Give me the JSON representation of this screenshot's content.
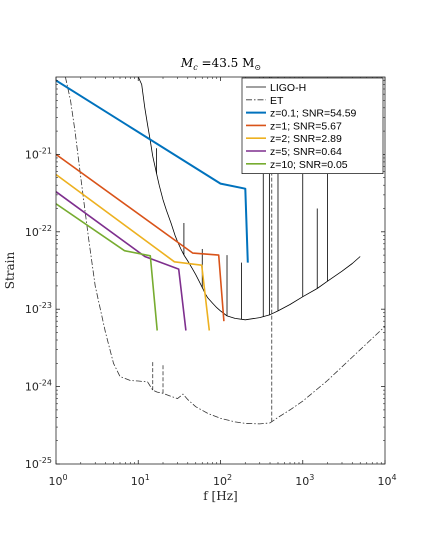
{
  "chart_data": {
    "type": "line",
    "title_parts": {
      "main": "M",
      "sub1": "c",
      "mid": " =43.5 M",
      "sub2": "⊙"
    },
    "xlabel": "f [Hz]",
    "ylabel": "Strain",
    "x_scale": "log",
    "y_scale": "log",
    "xlim": [
      1,
      10000
    ],
    "ylim": [
      1e-25,
      1e-20
    ],
    "x_ticks": [
      {
        "value": 1,
        "base": "10",
        "exp": "0"
      },
      {
        "value": 10,
        "base": "10",
        "exp": "1"
      },
      {
        "value": 100,
        "base": "10",
        "exp": "2"
      },
      {
        "value": 1000,
        "base": "10",
        "exp": "3"
      },
      {
        "value": 10000,
        "base": "10",
        "exp": "4"
      }
    ],
    "y_ticks": [
      {
        "value": 1e-25,
        "base": "10",
        "exp": "-25"
      },
      {
        "value": 1e-24,
        "base": "10",
        "exp": "-24"
      },
      {
        "value": 1e-23,
        "base": "10",
        "exp": "-23"
      },
      {
        "value": 1e-22,
        "base": "10",
        "exp": "-22"
      },
      {
        "value": 1e-21,
        "base": "10",
        "exp": "-21"
      }
    ],
    "grid": false,
    "legend_position": "top-right",
    "series": [
      {
        "name": "LIGO-H",
        "color": "#000000",
        "style": "solid",
        "width": 0.8,
        "x": [
          10,
          11,
          12,
          13,
          14,
          15,
          16,
          17,
          18,
          20,
          22,
          25,
          28,
          30,
          33,
          36,
          40,
          45,
          50,
          55,
          60,
          65,
          70,
          80,
          90,
          100,
          110,
          120,
          150,
          200,
          300,
          400,
          500,
          700,
          1000,
          1500,
          2000,
          3000,
          4000,
          5000
        ],
        "y": [
          1e-20,
          8e-21,
          4e-21,
          2.4e-21,
          1.5e-21,
          9.5e-22,
          7e-22,
          5.2e-22,
          4e-22,
          2.6e-22,
          1.9e-22,
          1.3e-22,
          9e-23,
          7.5e-23,
          6e-23,
          5e-23,
          4.2e-23,
          3.4e-23,
          2.8e-23,
          2.3e-23,
          1.9e-23,
          1.6e-23,
          1.4e-23,
          1.2e-23,
          1.05e-23,
          9.5e-24,
          8.8e-24,
          8.2e-24,
          7.6e-24,
          7.3e-24,
          7.8e-24,
          8.5e-24,
          9.5e-24,
          1.15e-23,
          1.45e-23,
          1.85e-23,
          2.3e-23,
          3.1e-23,
          3.9e-23,
          4.8e-23
        ],
        "spikes": [
          {
            "x": 16.7,
            "y": 1.2e-21
          },
          {
            "x": 35.9,
            "y": 1.3e-22
          },
          {
            "x": 60,
            "y": 6e-23
          },
          {
            "x": 120,
            "y": 5e-23
          },
          {
            "x": 180,
            "y": 4e-23
          },
          {
            "x": 331,
            "y": 1e-20
          },
          {
            "x": 393,
            "y": 1e-20
          },
          {
            "x": 500,
            "y": 1e-20
          },
          {
            "x": 1000,
            "y": 6e-21
          },
          {
            "x": 1500,
            "y": 2e-22
          },
          {
            "x": 2000,
            "y": 8e-22
          }
        ]
      },
      {
        "name": "ET",
        "color": "#333333",
        "style": "dashdot",
        "width": 0.8,
        "x": [
          1.3,
          1.5,
          1.7,
          2,
          2.5,
          3,
          4,
          5,
          6,
          8,
          10,
          13,
          15,
          17,
          20,
          25,
          30,
          35,
          40,
          50,
          70,
          100,
          150,
          200,
          300,
          400,
          500,
          700,
          1000,
          2000,
          3000,
          5000,
          10000
        ],
        "y": [
          1e-20,
          5e-21,
          2e-21,
          5e-22,
          8e-23,
          2e-23,
          5e-24,
          2e-24,
          1.35e-24,
          1.2e-24,
          1.18e-24,
          1.15e-24,
          9e-25,
          8.5e-25,
          8.2e-25,
          7.5e-25,
          7e-25,
          8e-25,
          6.8e-25,
          5.5e-25,
          4.5e-25,
          3.9e-25,
          3.5e-25,
          3.35e-25,
          3.3e-25,
          3.4e-25,
          4e-25,
          5e-25,
          6.5e-25,
          1.2e-24,
          1.8e-24,
          3e-24,
          6e-24
        ],
        "spikes": [
          {
            "x": 15,
            "y": 2.1e-24
          },
          {
            "x": 20,
            "y": 1.9e-24
          },
          {
            "x": 420,
            "y": 3e-20
          }
        ]
      },
      {
        "name": "z=0.1; SNR=54.59",
        "color": "#0072BD",
        "style": "solid",
        "width": 2,
        "x": [
          1,
          100,
          200,
          215
        ],
        "y": [
          9e-21,
          4.2e-22,
          3.6e-22,
          4e-23
        ]
      },
      {
        "name": "z=1; SNR=5.67",
        "color": "#D95319",
        "style": "solid",
        "width": 1.6,
        "x": [
          1,
          46,
          95,
          110
        ],
        "y": [
          1e-21,
          5.3e-23,
          5e-23,
          7e-24
        ]
      },
      {
        "name": "z=2; SNR=2.89",
        "color": "#EDB120",
        "style": "solid",
        "width": 1.6,
        "x": [
          1,
          27.5,
          59,
          73
        ],
        "y": [
          5.5e-22,
          4.1e-23,
          3.7e-23,
          5.3e-24
        ]
      },
      {
        "name": "z=5; SNR=0.64",
        "color": "#7E2F8E",
        "style": "solid",
        "width": 1.6,
        "x": [
          1,
          12,
          31,
          38
        ],
        "y": [
          3.3e-22,
          4.8e-23,
          3.3e-23,
          5.3e-24
        ]
      },
      {
        "name": "z=10; SNR=0.05",
        "color": "#77AC30",
        "style": "solid",
        "width": 1.6,
        "x": [
          1,
          6.8,
          14,
          17
        ],
        "y": [
          2.3e-22,
          5.7e-23,
          4.9e-23,
          5.3e-24
        ]
      }
    ]
  }
}
